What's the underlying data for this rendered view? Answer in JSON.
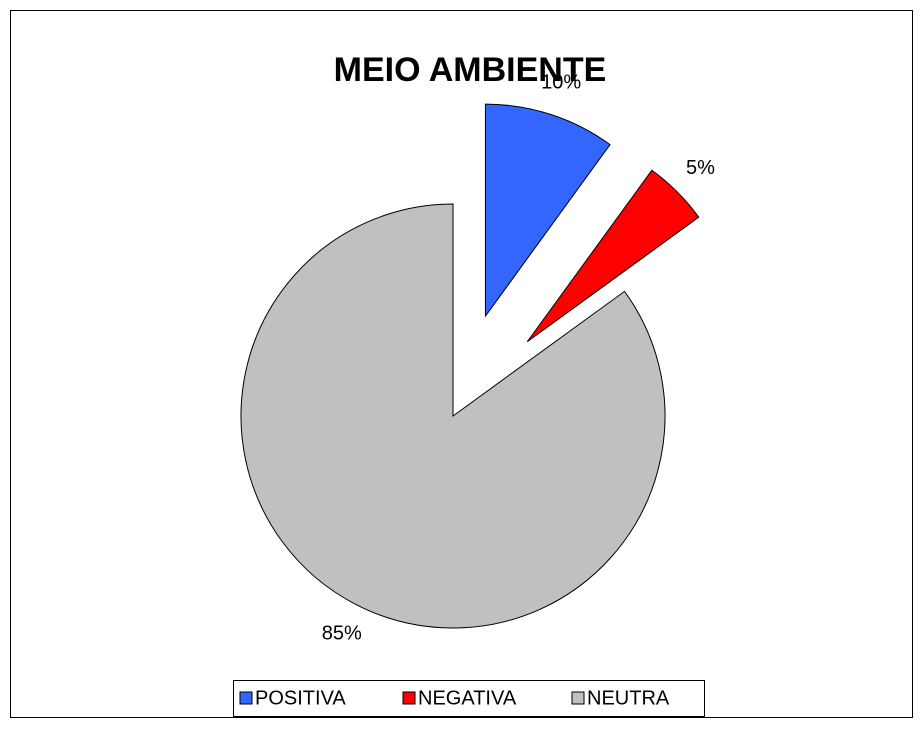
{
  "chart_data": {
    "type": "pie",
    "title": "MEIO AMBIENTE",
    "categories": [
      "POSITIVA",
      "NEGATIVA",
      "NEUTRA"
    ],
    "values": [
      10,
      5,
      85
    ],
    "value_labels": [
      "10%",
      "5%",
      "85%"
    ],
    "colors": [
      "#3366ff",
      "#ff0000",
      "#c0c0c0"
    ],
    "legend": "bottom"
  }
}
